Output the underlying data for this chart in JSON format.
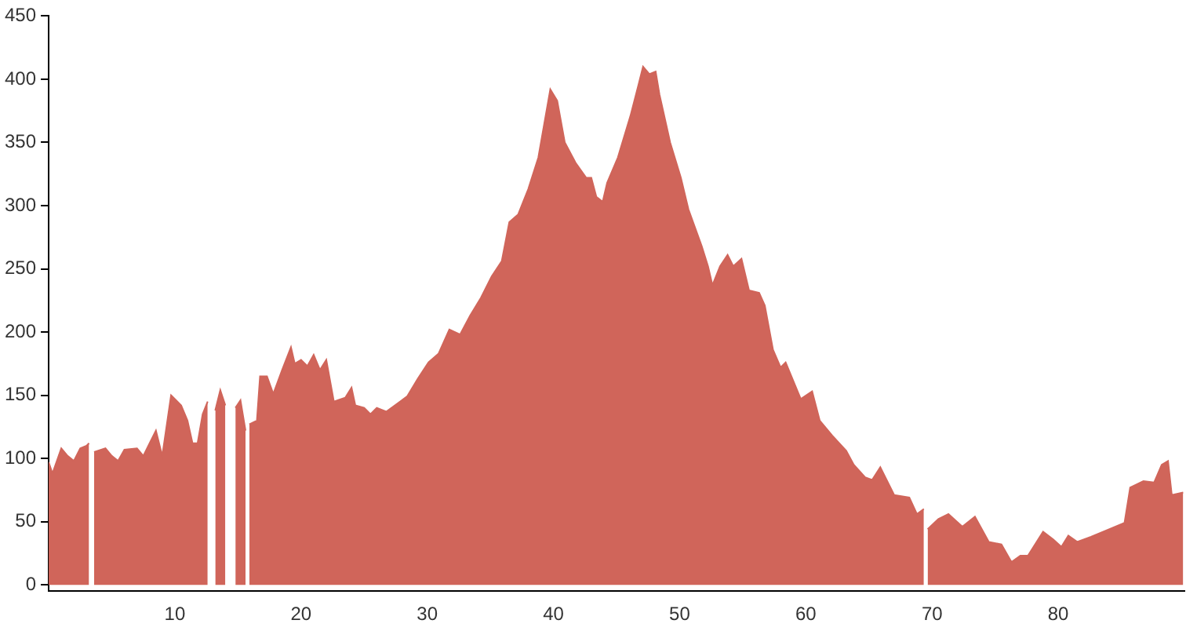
{
  "chart_data": {
    "type": "area",
    "xlim": [
      0,
      90
    ],
    "xticks": [
      10,
      20,
      30,
      40,
      50,
      60,
      70,
      80
    ],
    "ylim": [
      -5,
      450
    ],
    "yticks": [
      0,
      50,
      100,
      150,
      200,
      250,
      300,
      350,
      400,
      450
    ],
    "grid": false,
    "legend": false,
    "marker": "none",
    "series": [
      {
        "color": "#d0655a",
        "x": [
          0,
          0.3,
          1,
          1.5,
          2,
          2.5,
          3,
          3.2,
          3.4,
          3.6,
          4.5,
          5,
          5.5,
          6,
          7,
          7.5,
          8,
          8.5,
          9,
          9.7,
          10.5,
          11,
          11.4,
          11.8,
          12.2,
          12.6,
          12.9,
          13.2,
          13.4,
          13.6,
          13.8,
          14.0,
          14.4,
          14.8,
          15.0,
          15.2,
          15.4,
          15.6,
          15.75,
          15.9,
          16.5,
          16.75,
          17.3,
          17.8,
          18.5,
          19.2,
          19.5,
          20,
          20.5,
          21,
          21.5,
          22,
          22.6,
          23.5,
          24,
          24.3,
          25,
          25.5,
          26,
          26.75,
          28.4,
          29.25,
          30.1,
          30.9,
          31.75,
          32.6,
          33.4,
          34.25,
          35.1,
          35.9,
          36.5,
          37.2,
          38,
          38.8,
          39.75,
          40.3,
          40.9,
          41.75,
          42.6,
          43,
          43.4,
          43.9,
          44.25,
          45.1,
          46.1,
          46.75,
          47.1,
          47.6,
          48.1,
          48.4,
          49.25,
          50.1,
          50.7,
          51.75,
          52.25,
          52.6,
          53.2,
          53.8,
          54.25,
          54.9,
          55.5,
          56.3,
          56.75,
          57.4,
          58,
          58.4,
          59.6,
          60.5,
          61.1,
          62.1,
          63.2,
          63.8,
          64.7,
          65.25,
          65.9,
          67,
          68.2,
          68.8,
          69.35,
          69.5,
          69.65,
          70.5,
          71.3,
          72.4,
          73.4,
          74.5,
          75.5,
          76.3,
          77,
          77.6,
          78.8,
          79.6,
          80.25,
          80.8,
          81.5,
          82.6,
          83.8,
          85.25,
          85.7,
          86.75,
          87.6,
          88.2,
          88.7,
          89,
          89.9
        ],
        "values": [
          97,
          88,
          108,
          102,
          98,
          108,
          110,
          112,
          null,
          105,
          108,
          102,
          98,
          107,
          108,
          102,
          112,
          122,
          102,
          150,
          142,
          130,
          112,
          112,
          135,
          145,
          null,
          138,
          146,
          154,
          148,
          142,
          null,
          140,
          143,
          146,
          134,
          122,
          null,
          127,
          130,
          165,
          165,
          151,
          170,
          188,
          175,
          178,
          173,
          182,
          170,
          178,
          145,
          148,
          156,
          142,
          140,
          135,
          140,
          137,
          149,
          163,
          176,
          183,
          202,
          198,
          213,
          227,
          244,
          256,
          287,
          293,
          313,
          338,
          392,
          383,
          350,
          334,
          322,
          322,
          307,
          303,
          318,
          338,
          371,
          396,
          410,
          404,
          406,
          388,
          350,
          322,
          297,
          268,
          252,
          237,
          252,
          261,
          252,
          258,
          233,
          231,
          221,
          186,
          172,
          176,
          147,
          153,
          130,
          118,
          106,
          95,
          85,
          83,
          93,
          71,
          69,
          56,
          60,
          null,
          44,
          52,
          56,
          46,
          54,
          34,
          32,
          18,
          23,
          23,
          42,
          36,
          30,
          39,
          34,
          38,
          43,
          49,
          77,
          82,
          81,
          95,
          98,
          71,
          73
        ]
      }
    ]
  }
}
